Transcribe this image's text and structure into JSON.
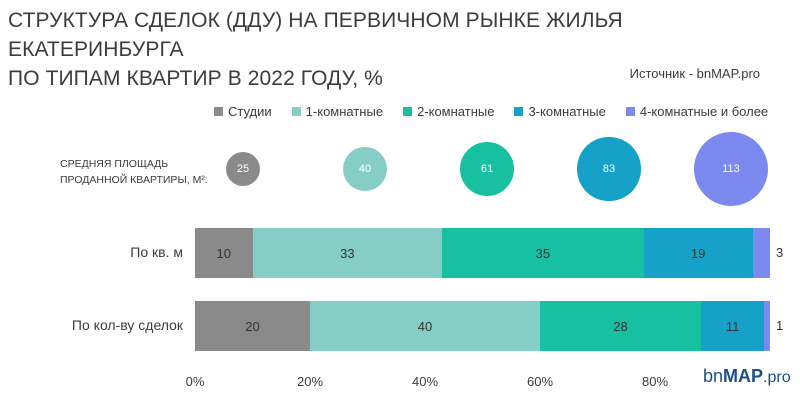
{
  "title_line1": "СТРУКТУРА СДЕЛОК (ДДУ) НА ПЕРВИЧНОМ РЫНКЕ ЖИЛЬЯ ЕКАТЕРИНБУРГА",
  "title_line2": "ПО ТИПАМ КВАРТИР В 2022 ГОДУ, %",
  "source": "Источник - bnMAP.pro",
  "avg_area_label_line1": "СРЕДНЯЯ ПЛОЩАДЬ",
  "avg_area_label_line2": "ПРОДАННОЙ КВАРТИРЫ, М²:",
  "logo": {
    "part1": "bn",
    "part2": "MAP",
    "part3": ".pro"
  },
  "colors": [
    "#8a8a8a",
    "#86cec5",
    "#16c0a1",
    "#15a1c8",
    "#7c8af0"
  ],
  "chart_data": {
    "type": "bar",
    "orientation": "horizontal",
    "stacked": true,
    "categories": [
      "По кв. м",
      "По кол-ву сделок"
    ],
    "series": [
      {
        "name": "Студии",
        "values": [
          10,
          20
        ],
        "avg_area": 25
      },
      {
        "name": "1-комнатные",
        "values": [
          33,
          40
        ],
        "avg_area": 40
      },
      {
        "name": "2-комнатные",
        "values": [
          35,
          28
        ],
        "avg_area": 61
      },
      {
        "name": "3-комнатные",
        "values": [
          19,
          11
        ],
        "avg_area": 83
      },
      {
        "name": "4-комнатные и более",
        "values": [
          3,
          1
        ],
        "avg_area": 113
      }
    ],
    "xlim": [
      0,
      100
    ],
    "xticks": [
      "0%",
      "20%",
      "40%",
      "60%",
      "80%"
    ],
    "legend_position": "top"
  }
}
